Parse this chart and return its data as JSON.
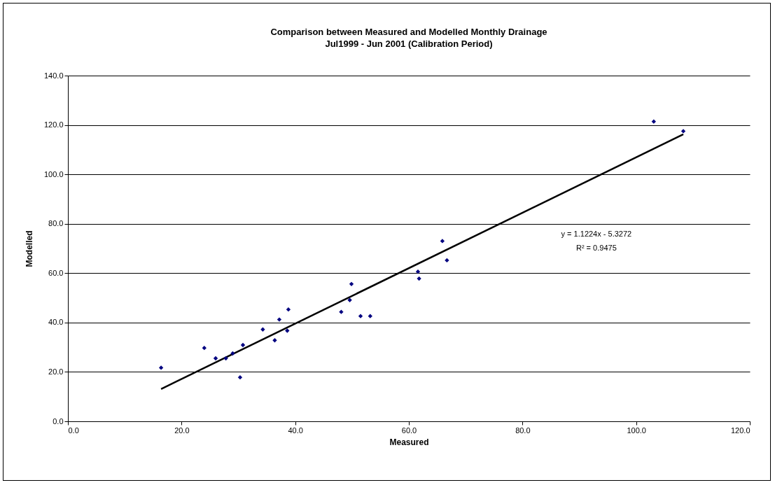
{
  "chart_data": {
    "type": "scatter",
    "title": "Comparison between Measured and Modelled Monthly Drainage",
    "subtitle": "Jul1999 - Jun 2001 (Calibration Period)",
    "xlabel": "Measured",
    "ylabel": "Modelled",
    "series": [
      {
        "type": "scatter",
        "color": "#000080",
        "marker": "diamond",
        "x": [
          16.4,
          24.0,
          26.0,
          27.8,
          29.0,
          30.3,
          30.8,
          34.3,
          36.4,
          37.2,
          38.6,
          38.8,
          48.1,
          49.6,
          49.9,
          51.5,
          53.2,
          61.6,
          61.8,
          65.9,
          66.7,
          103.1,
          108.3
        ],
        "values": [
          21.7,
          29.7,
          25.5,
          25.5,
          27.5,
          17.8,
          30.9,
          37.2,
          32.8,
          41.2,
          36.7,
          45.3,
          44.3,
          49.1,
          55.6,
          42.6,
          42.6,
          60.6,
          57.8,
          73.0,
          65.2,
          121.4,
          117.5
        ]
      },
      {
        "type": "line",
        "color": "#000000",
        "line_style": "solid",
        "marker": "none",
        "x": [
          16.4,
          108.3
        ],
        "values": [
          13.1,
          116.2
        ]
      }
    ],
    "xlim": [
      0,
      120
    ],
    "ylim": [
      0,
      140
    ],
    "xticks": [
      {
        "value": 0,
        "label": "0.0"
      },
      {
        "value": 20,
        "label": "20.0"
      },
      {
        "value": 40,
        "label": "40.0"
      },
      {
        "value": 60,
        "label": "60.0"
      },
      {
        "value": 80,
        "label": "80.0"
      },
      {
        "value": 100,
        "label": "100.0"
      },
      {
        "value": 120,
        "label": "120.0"
      }
    ],
    "yticks": [
      {
        "value": 0,
        "label": "0.0"
      },
      {
        "value": 20,
        "label": "20.0"
      },
      {
        "value": 40,
        "label": "40.0"
      },
      {
        "value": 60,
        "label": "60.0"
      },
      {
        "value": 80,
        "label": "80.0"
      },
      {
        "value": 100,
        "label": "100.0"
      },
      {
        "value": 120,
        "label": "120.0"
      },
      {
        "value": 140,
        "label": "140.0"
      }
    ],
    "annotations": [
      "y = 1.1224x - 5.3272",
      "R² = 0.9475"
    ],
    "grid": "y"
  }
}
